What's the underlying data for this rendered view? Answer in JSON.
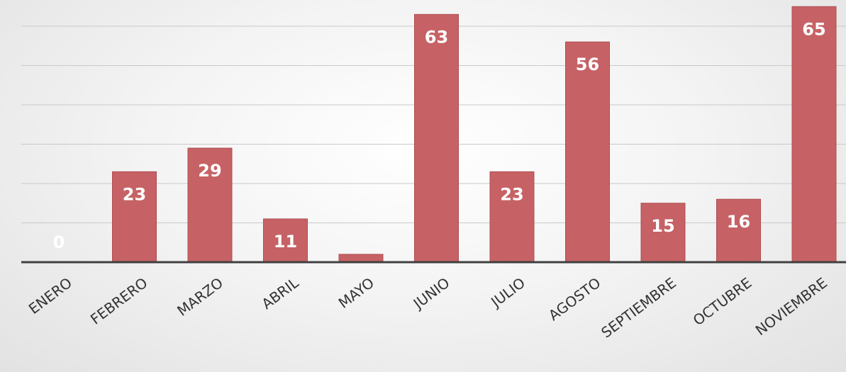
{
  "chart_data": {
    "type": "bar",
    "categories": [
      "ENERO",
      "FEBRERO",
      "MARZO",
      "ABRIL",
      "MAYO",
      "JUNIO",
      "JULIO",
      "AGOSTO",
      "SEPTIEMBRE",
      "OCTUBRE",
      "NOVIEMBRE"
    ],
    "values": [
      0,
      23,
      29,
      11,
      2,
      63,
      23,
      56,
      15,
      16,
      65
    ],
    "data_labels": [
      "0",
      "23",
      "29",
      "11",
      "",
      "63",
      "23",
      "56",
      "15",
      "16",
      "65"
    ],
    "ylim": [
      0,
      60
    ],
    "grid": true,
    "legend": "none",
    "colors": {
      "bar": "#c66265",
      "label": "#ffffff",
      "axis": "#404040",
      "grid": "#c9c9c9"
    }
  }
}
